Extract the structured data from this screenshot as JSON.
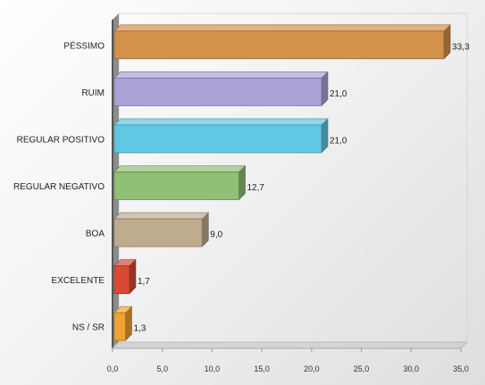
{
  "chart_data": {
    "type": "bar",
    "orientation": "horizontal",
    "style": "3d",
    "categories": [
      "PÉSSIMO",
      "RUIM",
      "REGULAR  POSITIVO",
      "REGULAR  NEGATIVO",
      "BOA",
      "EXCELENTE",
      "NS / SR"
    ],
    "values": [
      33.3,
      21.0,
      21.0,
      12.7,
      9.0,
      1.7,
      1.3
    ],
    "value_labels": [
      "33,3",
      "21,0",
      "21,0",
      "12,7",
      "9,0",
      "1,7",
      "1,3"
    ],
    "colors": [
      "#d4914a",
      "#a9a3d8",
      "#5fc8e2",
      "#8fc074",
      "#bfab8e",
      "#d94a35",
      "#f0a233"
    ],
    "x_ticks": [
      "0,0",
      "5,0",
      "10,0",
      "15,0",
      "20,0",
      "25,0",
      "30,0",
      "35,0"
    ],
    "xlim": [
      0,
      35
    ],
    "grid": false,
    "legend": "none"
  }
}
